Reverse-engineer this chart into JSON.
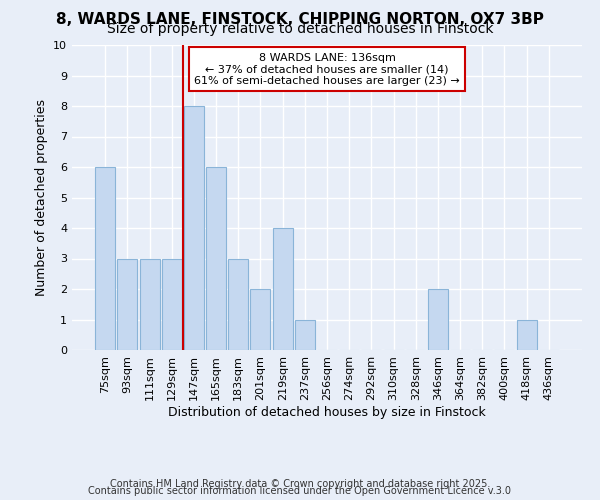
{
  "title1": "8, WARDS LANE, FINSTOCK, CHIPPING NORTON, OX7 3BP",
  "title2": "Size of property relative to detached houses in Finstock",
  "xlabel": "Distribution of detached houses by size in Finstock",
  "ylabel": "Number of detached properties",
  "categories": [
    "75sqm",
    "93sqm",
    "111sqm",
    "129sqm",
    "147sqm",
    "165sqm",
    "183sqm",
    "201sqm",
    "219sqm",
    "237sqm",
    "256sqm",
    "274sqm",
    "292sqm",
    "310sqm",
    "328sqm",
    "346sqm",
    "364sqm",
    "382sqm",
    "400sqm",
    "418sqm",
    "436sqm"
  ],
  "values": [
    6,
    3,
    3,
    3,
    8,
    6,
    3,
    2,
    4,
    1,
    0,
    0,
    0,
    0,
    0,
    2,
    0,
    0,
    0,
    1,
    0
  ],
  "bar_color": "#c5d8f0",
  "bar_edgecolor": "#8ab4d8",
  "bar_linewidth": 0.8,
  "red_line_x": 3.5,
  "red_line_label": "8 WARDS LANE: 136sqm",
  "annotation_smaller": "← 37% of detached houses are smaller (14)",
  "annotation_larger": "61% of semi-detached houses are larger (23) →",
  "annotation_box_color": "#ffffff",
  "annotation_box_edgecolor": "#cc0000",
  "ylim": [
    0,
    10
  ],
  "yticks": [
    0,
    1,
    2,
    3,
    4,
    5,
    6,
    7,
    8,
    9,
    10
  ],
  "background_color": "#e8eef8",
  "grid_color": "#ffffff",
  "footer1": "Contains HM Land Registry data © Crown copyright and database right 2025.",
  "footer2": "Contains public sector information licensed under the Open Government Licence v.3.0",
  "title_fontsize": 11,
  "subtitle_fontsize": 10,
  "axis_label_fontsize": 9,
  "tick_fontsize": 8,
  "annotation_fontsize": 8,
  "footer_fontsize": 7
}
